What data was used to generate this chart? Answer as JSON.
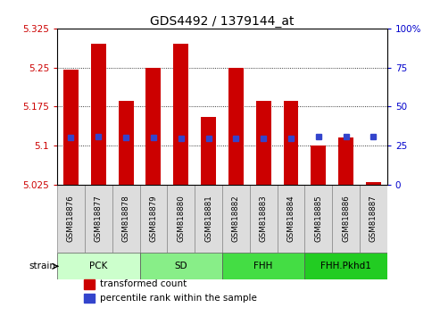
{
  "title": "GDS4492 / 1379144_at",
  "samples": [
    "GSM818876",
    "GSM818877",
    "GSM818878",
    "GSM818879",
    "GSM818880",
    "GSM818881",
    "GSM818882",
    "GSM818883",
    "GSM818884",
    "GSM818885",
    "GSM818886",
    "GSM818887"
  ],
  "bar_values": [
    5.245,
    5.295,
    5.185,
    5.25,
    5.295,
    5.155,
    5.25,
    5.185,
    5.185,
    5.1,
    5.115,
    5.03
  ],
  "percentile_values": [
    5.115,
    5.118,
    5.115,
    5.115,
    5.114,
    5.114,
    5.114,
    5.114,
    5.114,
    5.118,
    5.118,
    5.118
  ],
  "bar_base": 5.025,
  "ylim_left": [
    5.025,
    5.325
  ],
  "ylim_right": [
    0,
    100
  ],
  "yticks_left": [
    5.025,
    5.1,
    5.175,
    5.25,
    5.325
  ],
  "ytick_labels_left": [
    "5.025",
    "5.1",
    "5.175",
    "5.25",
    "5.325"
  ],
  "yticks_right": [
    0,
    25,
    50,
    75,
    100
  ],
  "ytick_labels_right": [
    "0",
    "25",
    "50",
    "75",
    "100%"
  ],
  "bar_color": "#cc0000",
  "percentile_color": "#3344cc",
  "groups": [
    {
      "label": "PCK",
      "start": 0,
      "end": 3,
      "color": "#ccffcc"
    },
    {
      "label": "SD",
      "start": 3,
      "end": 6,
      "color": "#88ee88"
    },
    {
      "label": "FHH",
      "start": 6,
      "end": 9,
      "color": "#44dd44"
    },
    {
      "label": "FHH.Pkhd1",
      "start": 9,
      "end": 12,
      "color": "#22cc22"
    }
  ],
  "left_tick_color": "#cc0000",
  "right_tick_color": "#0000cc",
  "legend_items": [
    {
      "label": "transformed count",
      "color": "#cc0000"
    },
    {
      "label": "percentile rank within the sample",
      "color": "#3344cc"
    }
  ]
}
